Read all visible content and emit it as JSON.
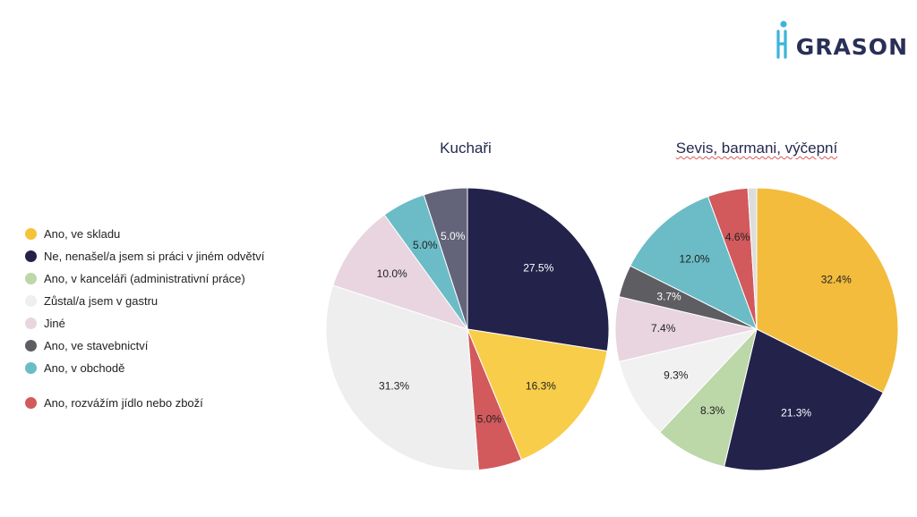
{
  "brand": {
    "logo_text": "GRASON"
  },
  "legend": [
    {
      "label": "Ano, ve skladu",
      "color": "#f5c338"
    },
    {
      "label": "Ne, nenašel/a jsem si práci v jiném odvětví",
      "color": "#23224b"
    },
    {
      "label": "Ano, v kanceláři (administrativní práce)",
      "color": "#bcd7a8"
    },
    {
      "label": "Zůstal/a jsem v gastru",
      "color": "#efefef"
    },
    {
      "label": "Jiné",
      "color": "#e8d5df"
    },
    {
      "label": "Ano, ve stavebnictví",
      "color": "#5e5e62"
    },
    {
      "label": "Ano, v obchodě",
      "color": "#6bbcc6"
    },
    {
      "label": "Ano, rozvážím jídlo nebo zboží",
      "color": "#d2595c"
    }
  ],
  "chart_data": [
    {
      "type": "pie",
      "title": "Kuchaři",
      "slices": [
        {
          "category": "Ne, nenašel/a jsem si práci v jiném odvětví",
          "value": 27.5,
          "label": "27.5%",
          "color": "#23224b",
          "text_color": "#ffffff"
        },
        {
          "category": "Ano, ve skladu",
          "value": 16.3,
          "label": "16.3%",
          "color": "#f8cd4a",
          "text_color": "#222222"
        },
        {
          "category": "Ano, rozvážím jídlo nebo zboží",
          "value": 5.0,
          "label": "5.0%",
          "color": "#d2595c",
          "text_color": "#222222"
        },
        {
          "category": "Zůstal/a jsem v gastru",
          "value": 31.3,
          "label": "31.3%",
          "color": "#eeeeee",
          "text_color": "#222222"
        },
        {
          "category": "Jiné",
          "value": 10.0,
          "label": "10.0%",
          "color": "#e8d5df",
          "text_color": "#222222"
        },
        {
          "category": "Ano, v obchodě",
          "value": 5.0,
          "label": "5.0%",
          "color": "#6bbcc6",
          "text_color": "#222222"
        },
        {
          "category": "Ano, ve stavebnictví",
          "value": 5.0,
          "label": "5.0%",
          "color": "#63637a",
          "text_color": "#ffffff"
        }
      ]
    },
    {
      "type": "pie",
      "title": "Sevis, barmani, výčepní",
      "slices": [
        {
          "category": "Ano, ve skladu",
          "value": 32.4,
          "label": "32.4%",
          "color": "#f3bc3d",
          "text_color": "#222222"
        },
        {
          "category": "Ne, nenašel/a jsem si práci v jiném odvětví",
          "value": 21.3,
          "label": "21.3%",
          "color": "#23224b",
          "text_color": "#ffffff"
        },
        {
          "category": "Ano, v kanceláři (administrativní práce)",
          "value": 8.3,
          "label": "8.3%",
          "color": "#bcd7a8",
          "text_color": "#222222"
        },
        {
          "category": "Zůstal/a jsem v gastru",
          "value": 9.3,
          "label": "9.3%",
          "color": "#f1f1f1",
          "text_color": "#222222"
        },
        {
          "category": "Jiné",
          "value": 7.4,
          "label": "7.4%",
          "color": "#e8d5df",
          "text_color": "#222222"
        },
        {
          "category": "Ano, ve stavebnictví",
          "value": 3.7,
          "label": "3.7%",
          "color": "#5e5e62",
          "text_color": "#ffffff"
        },
        {
          "category": "Ano, v obchodě",
          "value": 12.0,
          "label": "12.0%",
          "color": "#6bbcc6",
          "text_color": "#222222"
        },
        {
          "category": "Ano, rozvážím jídlo nebo zboží",
          "value": 4.6,
          "label": "4.6%",
          "color": "#d2595c",
          "text_color": "#222222"
        },
        {
          "category": "",
          "value": 1.0,
          "label": "",
          "color": "#dddddd",
          "text_color": "#222222"
        }
      ]
    }
  ]
}
